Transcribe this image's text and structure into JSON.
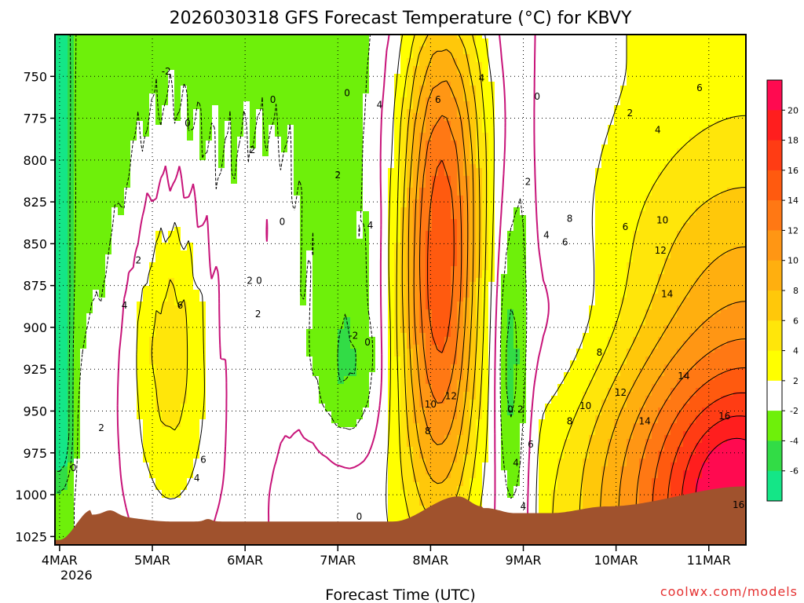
{
  "chart_data": {
    "type": "heatmap",
    "title": "2026030318  GFS Forecast Temperature (°C) for KBVY",
    "xlabel": "Forecast Time (UTC)",
    "ylabel": "",
    "x_ticks": [
      "4MAR",
      "5MAR",
      "6MAR",
      "7MAR",
      "8MAR",
      "9MAR",
      "10MAR",
      "11MAR"
    ],
    "x_year_label": "2026",
    "y_ticks": [
      750,
      775,
      800,
      825,
      850,
      875,
      900,
      925,
      950,
      975,
      1000,
      1025
    ],
    "y_range_hpa": [
      725,
      1030
    ],
    "x_range_days": [
      -0.05,
      7.4
    ],
    "colorbar": {
      "labels": [
        20,
        18,
        16,
        14,
        12,
        10,
        8,
        6,
        4,
        2,
        -2,
        -4,
        -6
      ],
      "bins": [
        {
          "min": 20,
          "color": "#ff0a50"
        },
        {
          "min": 18,
          "color": "#ff1e1e"
        },
        {
          "min": 16,
          "color": "#ff3c14"
        },
        {
          "min": 14,
          "color": "#ff5a0f"
        },
        {
          "min": 12,
          "color": "#ff7814"
        },
        {
          "min": 10,
          "color": "#ff9614"
        },
        {
          "min": 8,
          "color": "#ffaf0f"
        },
        {
          "min": 6,
          "color": "#ffc80a"
        },
        {
          "min": 4,
          "color": "#ffe60a"
        },
        {
          "min": 2,
          "color": "#ffff00"
        },
        {
          "min": -2,
          "color": "#ffffff"
        },
        {
          "min": -4,
          "color": "#6ef00a"
        },
        {
          "min": -6,
          "color": "#32dc46"
        },
        {
          "min": -99,
          "color": "#14e687"
        }
      ]
    },
    "contour_labels": [
      {
        "t": -2,
        "d": 1.15,
        "p": 747
      },
      {
        "t": 0,
        "d": 1.38,
        "p": 778
      },
      {
        "t": 0,
        "d": 2.3,
        "p": 764
      },
      {
        "t": 0,
        "d": 3.1,
        "p": 760
      },
      {
        "t": 0,
        "d": 5.15,
        "p": 762
      },
      {
        "t": 2,
        "d": 6.15,
        "p": 772
      },
      {
        "t": 4,
        "d": 6.45,
        "p": 782
      },
      {
        "t": 6,
        "d": 6.9,
        "p": 757
      },
      {
        "t": 4,
        "d": 4.55,
        "p": 751
      },
      {
        "t": 6,
        "d": 4.08,
        "p": 764
      },
      {
        "t": 4,
        "d": 3.45,
        "p": 767
      },
      {
        "t": 2,
        "d": 2.08,
        "p": 794
      },
      {
        "t": 2,
        "d": 3.0,
        "p": 809
      },
      {
        "t": 0,
        "d": 2.4,
        "p": 837
      },
      {
        "t": 4,
        "d": 3.35,
        "p": 839
      },
      {
        "t": 2,
        "d": 5.05,
        "p": 813
      },
      {
        "t": 4,
        "d": 5.25,
        "p": 845
      },
      {
        "t": 6,
        "d": 5.45,
        "p": 849
      },
      {
        "t": 8,
        "d": 5.5,
        "p": 835
      },
      {
        "t": 6,
        "d": 6.1,
        "p": 840
      },
      {
        "t": 10,
        "d": 6.5,
        "p": 836
      },
      {
        "t": 12,
        "d": 6.48,
        "p": 854
      },
      {
        "t": 2,
        "d": 0.85,
        "p": 860
      },
      {
        "t": 2,
        "d": 2.05,
        "p": 872
      },
      {
        "t": 0,
        "d": 2.15,
        "p": 872
      },
      {
        "t": 14,
        "d": 6.55,
        "p": 880
      },
      {
        "t": 4,
        "d": 0.7,
        "p": 887
      },
      {
        "t": 6,
        "d": 1.3,
        "p": 887
      },
      {
        "t": 2,
        "d": 2.14,
        "p": 892
      },
      {
        "t": -2,
        "d": 3.17,
        "p": 905
      },
      {
        "t": 0,
        "d": 3.32,
        "p": 909
      },
      {
        "t": 8,
        "d": 5.82,
        "p": 915
      },
      {
        "t": 12,
        "d": 6.05,
        "p": 939
      },
      {
        "t": 14,
        "d": 6.73,
        "p": 929
      },
      {
        "t": 12,
        "d": 4.22,
        "p": 941
      },
      {
        "t": 10,
        "d": 4.0,
        "p": 946
      },
      {
        "t": 10,
        "d": 5.67,
        "p": 947
      },
      {
        "t": 2,
        "d": 0.45,
        "p": 960
      },
      {
        "t": 0,
        "d": 4.86,
        "p": 949
      },
      {
        "t": 2,
        "d": 4.97,
        "p": 949
      },
      {
        "t": 8,
        "d": 5.5,
        "p": 956
      },
      {
        "t": 14,
        "d": 6.31,
        "p": 956
      },
      {
        "t": 16,
        "d": 7.17,
        "p": 953
      },
      {
        "t": 8,
        "d": 3.97,
        "p": 962
      },
      {
        "t": 6,
        "d": 5.08,
        "p": 970
      },
      {
        "t": 6,
        "d": 1.55,
        "p": 979
      },
      {
        "t": 4,
        "d": 1.48,
        "p": 990
      },
      {
        "t": 4,
        "d": 4.92,
        "p": 981
      },
      {
        "t": 0,
        "d": 0.15,
        "p": 984
      },
      {
        "t": 4,
        "d": 5.0,
        "p": 1007
      },
      {
        "t": 16,
        "d": 7.32,
        "p": 1006
      },
      {
        "t": 0,
        "d": 3.23,
        "p": 1013
      }
    ]
  },
  "watermark": "coolwx.com/models"
}
